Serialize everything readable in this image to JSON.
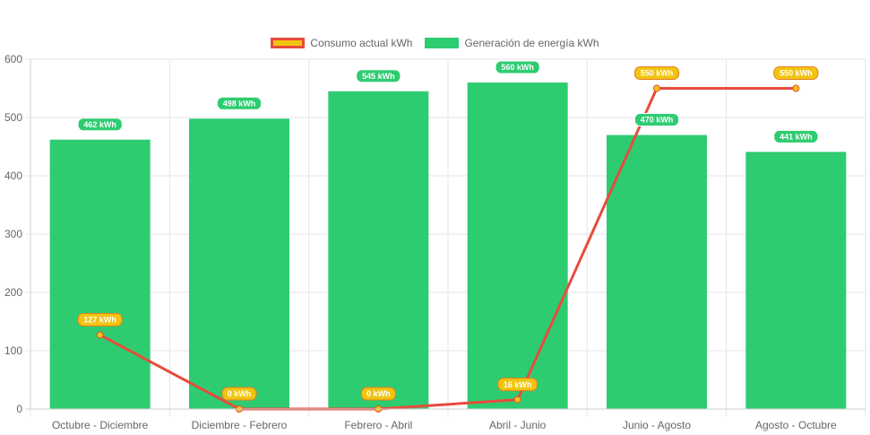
{
  "chart_data": {
    "type": "bar",
    "categories": [
      "Octubre - Diciembre",
      "Diciembre - Febrero",
      "Febrero - Abril",
      "Abril - Junio",
      "Junio - Agosto",
      "Agosto - Octubre"
    ],
    "series": [
      {
        "name": "Consumo actual kWh",
        "type": "line",
        "values": [
          127,
          0,
          0,
          16,
          550,
          550
        ],
        "labels": [
          "127 kWh",
          "0 kWh",
          "0 kWh",
          "16 kWh",
          "550 kWh",
          "550 kWh"
        ],
        "color": "#e74c3c",
        "fill_color": "#f1c40f"
      },
      {
        "name": "Generación de energía kWh",
        "type": "bar",
        "values": [
          462,
          498,
          545,
          560,
          470,
          441
        ],
        "labels": [
          "462 kWh",
          "498 kWh",
          "545 kWh",
          "560 kWh",
          "470 kWh",
          "441 kWh"
        ],
        "color": "#2ecc71"
      }
    ],
    "y_ticks": [
      "0",
      "100",
      "200",
      "300",
      "400",
      "500",
      "600"
    ],
    "ylim": [
      0,
      600
    ],
    "grid": true,
    "legend_position": "top"
  }
}
